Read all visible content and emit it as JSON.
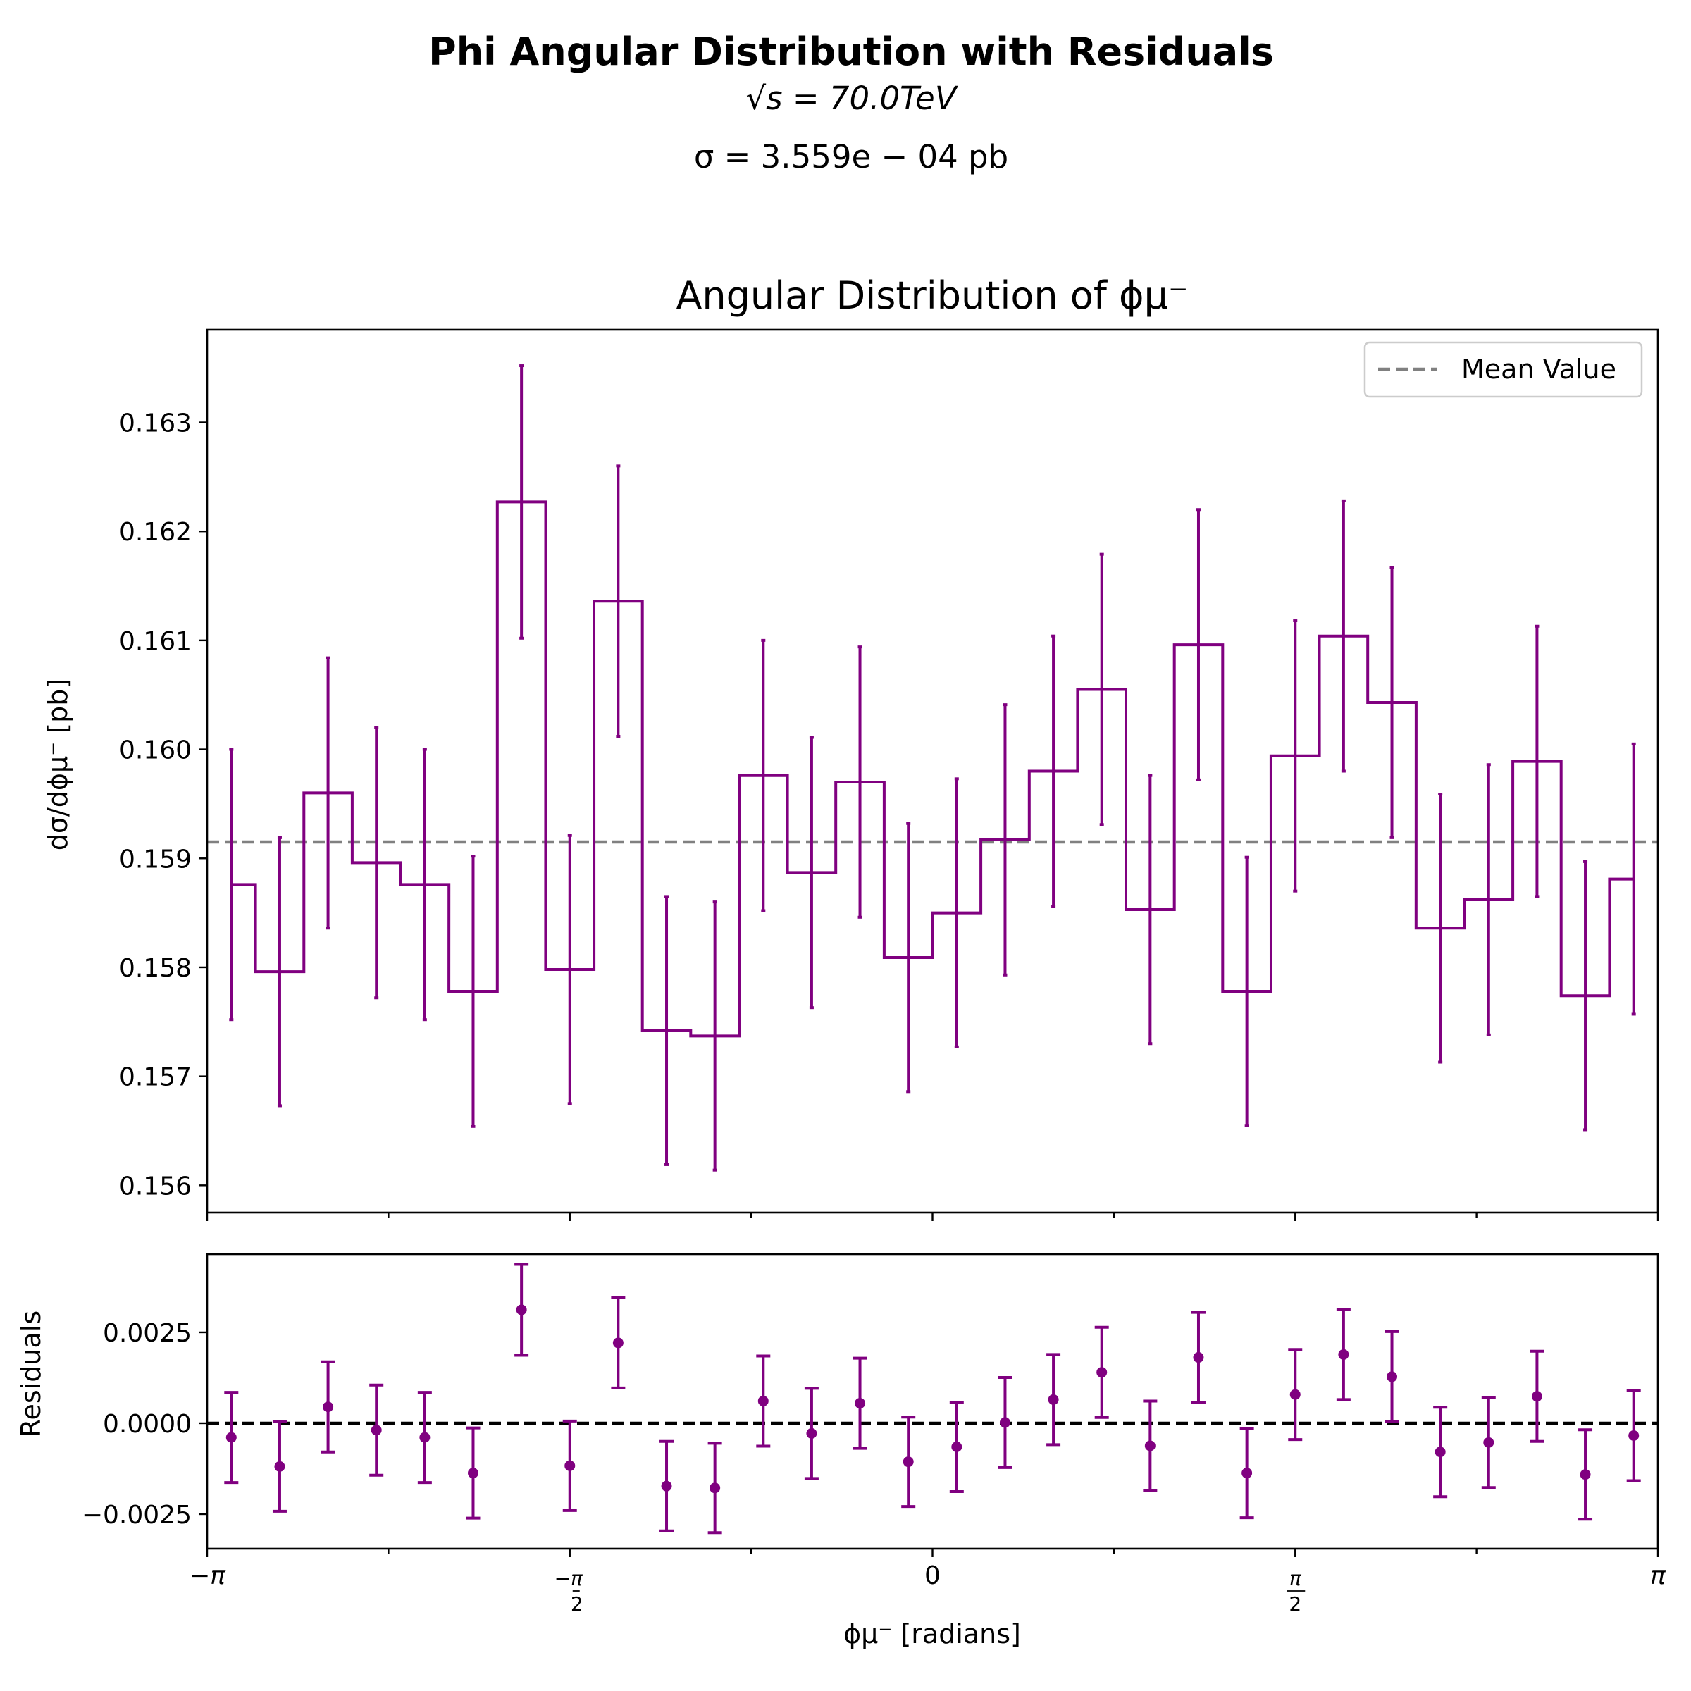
{
  "figure": {
    "suptitle": "Phi Angular Distribution with Residuals",
    "energy_line": "√s = 70.0TeV",
    "sigma_line": "σ = 3.559e − 04 pb"
  },
  "colors": {
    "series": "#800080",
    "mean_line": "#808080",
    "zero_line": "#000000"
  },
  "chart_data": [
    {
      "type": "line",
      "style": "step histogram with error bars",
      "title": "Angular Distribution of ϕμ⁻",
      "ylabel": "dσ/dϕμ⁻ [pb]",
      "xlabel": "",
      "xlim": [
        -3.14159,
        3.14159
      ],
      "ylim": [
        0.15575,
        0.16385
      ],
      "yticks": [
        "0.156",
        "0.157",
        "0.158",
        "0.159",
        "0.160",
        "0.161",
        "0.162",
        "0.163"
      ],
      "legend": {
        "position": "top-right",
        "entries": [
          "Mean Value"
        ]
      },
      "mean_value": 0.15915,
      "x": [
        -3.0369,
        -2.8274,
        -2.618,
        -2.4086,
        -2.1991,
        -1.9897,
        -1.7802,
        -1.5708,
        -1.3614,
        -1.1519,
        -0.9425,
        -0.733,
        -0.5236,
        -0.3142,
        -0.1047,
        0.1047,
        0.3142,
        0.5236,
        0.733,
        0.9425,
        1.1519,
        1.3614,
        1.5708,
        1.7802,
        1.9897,
        2.1991,
        2.4086,
        2.618,
        2.8274,
        3.0369
      ],
      "series": [
        {
          "name": "",
          "values": [
            0.15876,
            0.15796,
            0.1596,
            0.15896,
            0.15876,
            0.15778,
            0.16227,
            0.15798,
            0.16136,
            0.15742,
            0.15737,
            0.15976,
            0.15887,
            0.1597,
            0.15809,
            0.1585,
            0.15917,
            0.1598,
            0.16055,
            0.15853,
            0.16096,
            0.15778,
            0.15994,
            0.16104,
            0.16043,
            0.15836,
            0.15862,
            0.15989,
            0.15774,
            0.15881
          ],
          "errors": [
            0.00124,
            0.00123,
            0.00124,
            0.00124,
            0.00124,
            0.00124,
            0.00125,
            0.00123,
            0.00124,
            0.00123,
            0.00123,
            0.00124,
            0.00124,
            0.00124,
            0.00123,
            0.00123,
            0.00124,
            0.00124,
            0.00124,
            0.00123,
            0.00124,
            0.00123,
            0.00124,
            0.00124,
            0.00124,
            0.00123,
            0.00124,
            0.00124,
            0.00123,
            0.00124
          ]
        }
      ]
    },
    {
      "type": "scatter",
      "style": "points with error bars",
      "title": "",
      "ylabel": "Residuals",
      "xlabel": "ϕμ⁻ [radians]",
      "xlim": [
        -3.14159,
        3.14159
      ],
      "ylim": [
        -0.00345,
        0.00465
      ],
      "xticks": [
        "−π",
        "−π/2",
        "0",
        "π/2",
        "π"
      ],
      "yticks": [
        "0.0025",
        "0.0000",
        "−0.0025"
      ],
      "zero_line": 0,
      "x": [
        -3.0369,
        -2.8274,
        -2.618,
        -2.4086,
        -2.1991,
        -1.9897,
        -1.7802,
        -1.5708,
        -1.3614,
        -1.1519,
        -0.9425,
        -0.733,
        -0.5236,
        -0.3142,
        -0.1047,
        0.1047,
        0.3142,
        0.5236,
        0.733,
        0.9425,
        1.1519,
        1.3614,
        1.5708,
        1.7802,
        1.9897,
        2.1991,
        2.4086,
        2.618,
        2.8274,
        3.0369
      ],
      "series": [
        {
          "name": "",
          "values": [
            -0.00039,
            -0.00119,
            0.00045,
            -0.00019,
            -0.00039,
            -0.00137,
            0.00312,
            -0.00117,
            0.00221,
            -0.00173,
            -0.00178,
            0.00061,
            -0.00028,
            0.00055,
            -0.00106,
            -0.00065,
            2e-05,
            0.00065,
            0.0014,
            -0.00062,
            0.00181,
            -0.00137,
            0.00079,
            0.00189,
            0.00128,
            -0.00079,
            -0.00053,
            0.00074,
            -0.00141,
            -0.00034
          ],
          "errors": [
            0.00124,
            0.00123,
            0.00124,
            0.00124,
            0.00124,
            0.00124,
            0.00125,
            0.00123,
            0.00124,
            0.00123,
            0.00123,
            0.00124,
            0.00124,
            0.00124,
            0.00123,
            0.00123,
            0.00124,
            0.00124,
            0.00124,
            0.00123,
            0.00124,
            0.00123,
            0.00124,
            0.00124,
            0.00124,
            0.00123,
            0.00124,
            0.00124,
            0.00123,
            0.00124
          ]
        }
      ]
    }
  ]
}
